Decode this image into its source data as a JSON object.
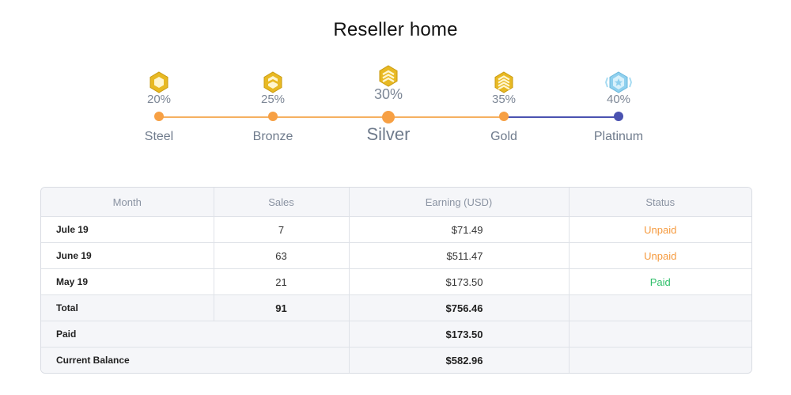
{
  "page": {
    "title": "Reseller home"
  },
  "tiers": [
    {
      "name": "Steel",
      "percent": "20%",
      "badge": "steel-badge-icon",
      "state": "done"
    },
    {
      "name": "Bronze",
      "percent": "25%",
      "badge": "bronze-badge-icon",
      "state": "done"
    },
    {
      "name": "Silver",
      "percent": "30%",
      "badge": "silver-badge-icon",
      "state": "current"
    },
    {
      "name": "Gold",
      "percent": "35%",
      "badge": "gold-badge-icon",
      "state": "done"
    },
    {
      "name": "Platinum",
      "percent": "40%",
      "badge": "platinum-badge-icon",
      "state": "next"
    }
  ],
  "colors": {
    "achieved": "#f7a044",
    "upcoming": "#4a52b0",
    "unpaid": "#f59a3e",
    "paid": "#2fbf6a",
    "badge_gold": "#e8b923",
    "badge_platinum": "#8fd0ee"
  },
  "table": {
    "headers": [
      "Month",
      "Sales",
      "Earning (USD)",
      "Status"
    ],
    "rows": [
      {
        "month": "Jule 19",
        "sales": "7",
        "earning": "$71.49",
        "status": "Unpaid"
      },
      {
        "month": "June 19",
        "sales": "63",
        "earning": "$511.47",
        "status": "Unpaid"
      },
      {
        "month": "May 19",
        "sales": "21",
        "earning": "$173.50",
        "status": "Paid"
      }
    ],
    "total": {
      "label": "Total",
      "sales": "91",
      "earning": "$756.46"
    },
    "paid": {
      "label": "Paid",
      "earning": "$173.50"
    },
    "balance": {
      "label": "Current Balance",
      "earning": "$582.96"
    }
  }
}
